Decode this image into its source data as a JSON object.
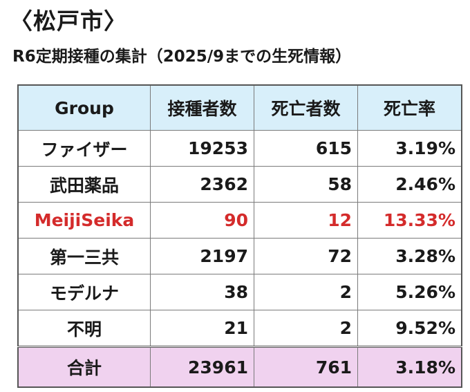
{
  "heading": "〈松戸市〉",
  "subheading": "R6定期接種の集計（2025/9までの生死情報）",
  "table": {
    "headers": [
      "Group",
      "接種者数",
      "死亡者数",
      "死亡率"
    ],
    "rows": [
      {
        "name": "ファイザー",
        "vaccinated": "19253",
        "deaths": "615",
        "rate": "3.19%"
      },
      {
        "name": "武田薬品",
        "vaccinated": "2362",
        "deaths": "58",
        "rate": "2.46%"
      },
      {
        "name": "MeijiSeika",
        "vaccinated": "90",
        "deaths": "12",
        "rate": "13.33%"
      },
      {
        "name": "第一三共",
        "vaccinated": "2197",
        "deaths": "72",
        "rate": "3.28%"
      },
      {
        "name": "モデルナ",
        "vaccinated": "38",
        "deaths": "2",
        "rate": "5.26%"
      },
      {
        "name": "不明",
        "vaccinated": "21",
        "deaths": "2",
        "rate": "9.52%"
      }
    ],
    "total": {
      "name": "合計",
      "vaccinated": "23961",
      "deaths": "761",
      "rate": "3.18%"
    }
  },
  "colors": {
    "header_bg": "#d8effa",
    "total_bg": "#f0d2ef",
    "highlight_text": "#d42b2b"
  },
  "highlighted_row": "MeijiSeika"
}
